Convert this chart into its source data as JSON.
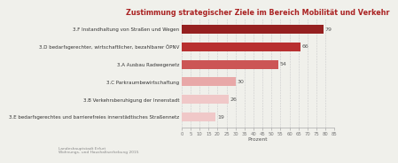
{
  "title": "Zustimmung strategischer Ziele im Bereich Mobilität und Verkehr",
  "categories": [
    "3.E bedarfsgerechtes und barrierefreies innerstädtisches Straßennetz",
    "3.B Verkehrsberuhigung der Innenstadt",
    "3.C Parkraumbewirtschaftung",
    "3.A Ausbau Radwegenetz",
    "3.D bedarfsgerechter, wirtschaftlicher, bezahlbarer ÖPNV",
    "3.F Instandhaltung von Straßen und Wegen"
  ],
  "values": [
    19,
    26,
    30,
    54,
    66,
    79
  ],
  "bar_colors": [
    "#f0c8c8",
    "#f0c8c8",
    "#e8a8a8",
    "#cc5555",
    "#b83030",
    "#952020"
  ],
  "xlabel": "Prozent",
  "xlim": [
    0,
    85
  ],
  "xticks": [
    0,
    5,
    10,
    15,
    20,
    25,
    30,
    35,
    40,
    45,
    50,
    55,
    60,
    65,
    70,
    75,
    80,
    85
  ],
  "footnote_line1": "Landeshauptstadt Erfurt",
  "footnote_line2": "Wohnungs- und Haushaltserhebung 2015",
  "value_label_color": "#555555",
  "title_color": "#aa2222",
  "background_color": "#f0f0eb",
  "grid_color": "#cccccc",
  "bar_height": 0.5,
  "title_fontsize": 5.8,
  "label_fontsize": 4.0,
  "tick_fontsize": 3.8,
  "footnote_fontsize": 3.2,
  "value_fontsize": 4.5
}
